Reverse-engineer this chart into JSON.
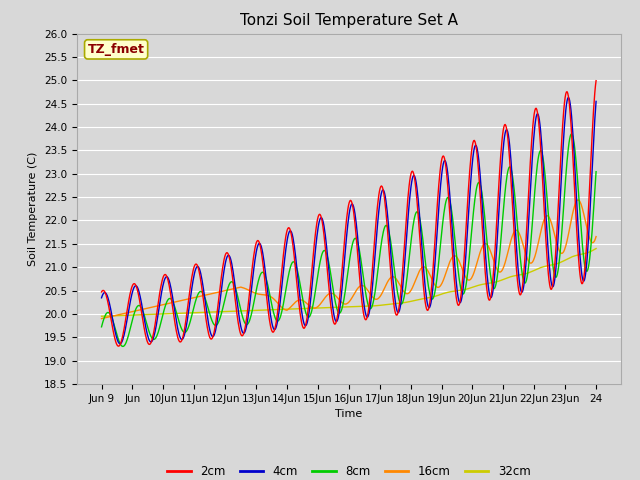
{
  "title": "Tonzi Soil Temperature Set A",
  "xlabel": "Time",
  "ylabel": "Soil Temperature (C)",
  "ylim": [
    18.5,
    26.0
  ],
  "yticks": [
    18.5,
    19.0,
    19.5,
    20.0,
    20.5,
    21.0,
    21.5,
    22.0,
    22.5,
    23.0,
    23.5,
    24.0,
    24.5,
    25.0,
    25.5,
    26.0
  ],
  "xtick_labels": [
    "Jun 9",
    "Jun",
    "10Jun",
    "11Jun",
    "12Jun",
    "13Jun",
    "14Jun",
    "15Jun",
    "16Jun",
    "17Jun",
    "18Jun",
    "19Jun",
    "20Jun",
    "21Jun",
    "22Jun",
    "23Jun",
    "24"
  ],
  "annotation_text": "TZ_fmet",
  "annotation_bg": "#ffffcc",
  "annotation_border": "#aaaa00",
  "annotation_text_color": "#8b0000",
  "legend_labels": [
    "2cm",
    "4cm",
    "8cm",
    "16cm",
    "32cm"
  ],
  "line_colors": [
    "#ff0000",
    "#0000cc",
    "#00cc00",
    "#ff8800",
    "#cccc00"
  ],
  "line_widths": [
    1.0,
    1.0,
    1.0,
    1.0,
    1.0
  ],
  "bg_color": "#d8d8d8",
  "plot_bg_color": "#d8d8d8",
  "grid_color": "#ffffff",
  "title_fontsize": 11,
  "axis_fontsize": 8,
  "tick_fontsize": 7.5
}
